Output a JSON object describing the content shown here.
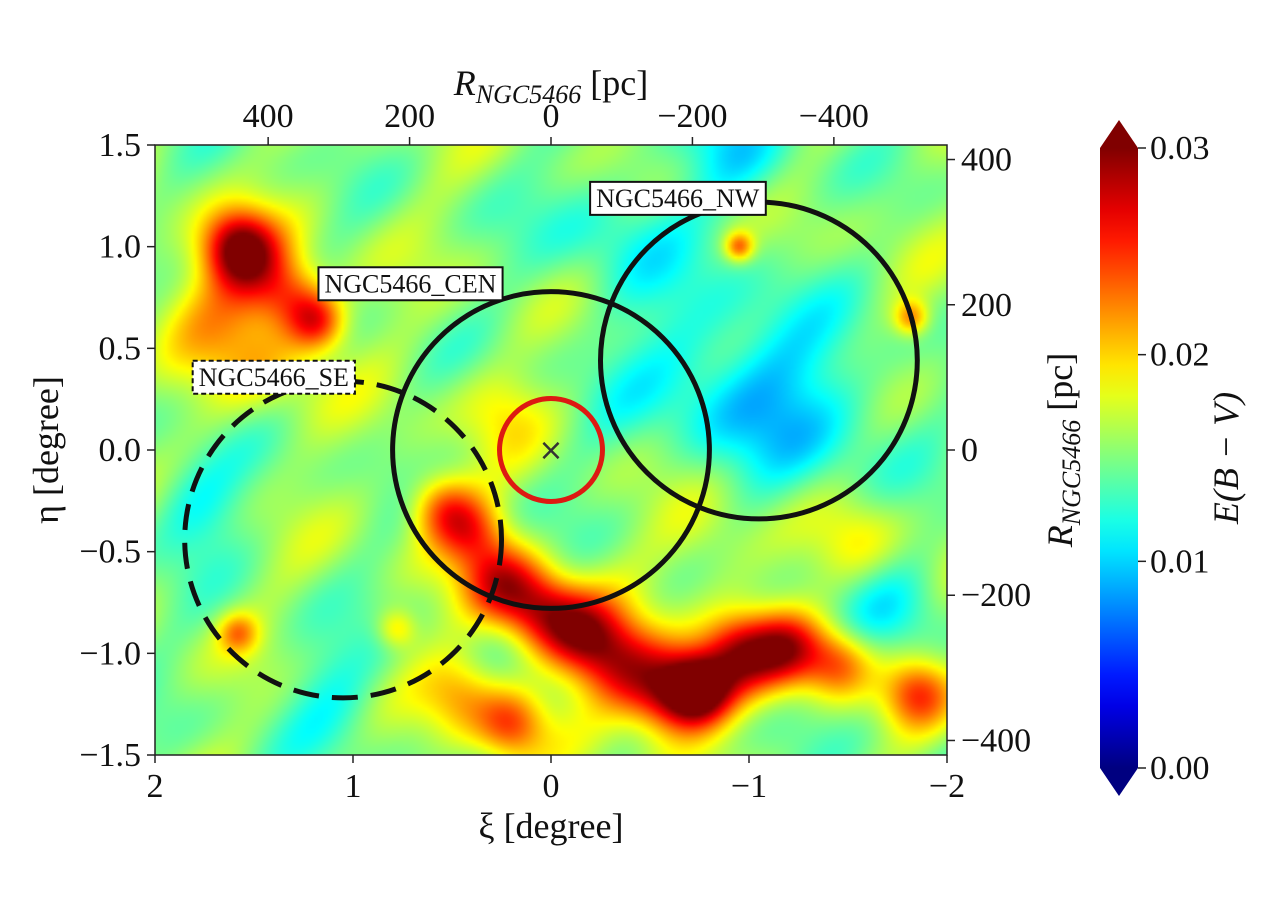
{
  "chart_data": {
    "type": "heatmap",
    "title": "",
    "xlabel": "ξ [degree]",
    "ylabel": "η [degree]",
    "top_xlabel_main": "R",
    "top_xlabel_sub": "NGC5466",
    "top_xlabel_unit": " [pc]",
    "right_ylabel_main": "R",
    "right_ylabel_sub": "NGC5466",
    "right_ylabel_unit": " [pc]",
    "xlim": [
      2,
      -2
    ],
    "ylim": [
      -1.5,
      1.5
    ],
    "x_ticks": [
      2,
      1,
      0,
      -1,
      -2
    ],
    "x_tick_labels": [
      "2",
      "1",
      "0",
      "−1",
      "−2"
    ],
    "y_ticks": [
      1.5,
      1.0,
      0.5,
      0.0,
      -0.5,
      -1.0,
      -1.5
    ],
    "y_tick_labels": [
      "1.5",
      "1.0",
      "0.5",
      "0.0",
      "−0.5",
      "−1.0",
      "−1.5"
    ],
    "top_ticks_pc": [
      400,
      200,
      0,
      -200,
      -400
    ],
    "top_tick_labels": [
      "400",
      "200",
      "0",
      "−200",
      "−400"
    ],
    "right_ticks_pc": [
      400,
      200,
      0,
      -200,
      -400
    ],
    "right_tick_labels": [
      "400",
      "200",
      "0",
      "−200",
      "−400"
    ],
    "pc_per_degree": 280,
    "colorbar": {
      "label": "E(B − V)",
      "min": 0.0,
      "max": 0.03,
      "ticks": [
        0.0,
        0.01,
        0.02,
        0.03
      ],
      "tick_labels": [
        "0.00",
        "0.01",
        "0.02",
        "0.03"
      ],
      "extend": "both"
    },
    "background_level": 0.0155,
    "extinction_features": [
      {
        "xi": 1.58,
        "eta": 1.0,
        "amp": 0.013,
        "sigma": 0.13
      },
      {
        "xi": 1.45,
        "eta": 0.85,
        "amp": 0.005,
        "sigma": 0.15
      },
      {
        "xi": 1.3,
        "eta": 0.75,
        "amp": 0.006,
        "sigma": 0.12
      },
      {
        "xi": 1.18,
        "eta": 0.63,
        "amp": 0.009,
        "sigma": 0.1
      },
      {
        "xi": 1.75,
        "eta": 0.7,
        "amp": 0.004,
        "sigma": 0.2
      },
      {
        "xi": 1.45,
        "eta": 0.45,
        "amp": 0.004,
        "sigma": 0.2
      },
      {
        "xi": 0.55,
        "eta": -0.28,
        "amp": 0.008,
        "sigma": 0.12
      },
      {
        "xi": 0.4,
        "eta": -0.4,
        "amp": 0.007,
        "sigma": 0.12
      },
      {
        "xi": 0.25,
        "eta": -0.65,
        "amp": 0.01,
        "sigma": 0.14
      },
      {
        "xi": 0.05,
        "eta": -0.8,
        "amp": 0.01,
        "sigma": 0.14
      },
      {
        "xi": -0.15,
        "eta": -0.9,
        "amp": 0.009,
        "sigma": 0.14
      },
      {
        "xi": -0.35,
        "eta": -1.05,
        "amp": 0.01,
        "sigma": 0.16
      },
      {
        "xi": -0.6,
        "eta": -1.2,
        "amp": 0.012,
        "sigma": 0.15
      },
      {
        "xi": -0.75,
        "eta": -1.18,
        "amp": 0.014,
        "sigma": 0.12
      },
      {
        "xi": -0.95,
        "eta": -1.0,
        "amp": 0.011,
        "sigma": 0.14
      },
      {
        "xi": -1.2,
        "eta": -0.98,
        "amp": 0.01,
        "sigma": 0.13
      },
      {
        "xi": -1.45,
        "eta": -1.05,
        "amp": 0.008,
        "sigma": 0.12
      },
      {
        "xi": -1.85,
        "eta": -1.2,
        "amp": 0.008,
        "sigma": 0.12
      },
      {
        "xi": 0.2,
        "eta": -1.35,
        "amp": 0.008,
        "sigma": 0.12
      },
      {
        "xi": 0.45,
        "eta": -1.2,
        "amp": 0.006,
        "sigma": 0.14
      },
      {
        "xi": -0.95,
        "eta": 1.0,
        "amp": 0.008,
        "sigma": 0.05
      },
      {
        "xi": -1.82,
        "eta": 0.65,
        "amp": 0.007,
        "sigma": 0.06
      },
      {
        "xi": 1.58,
        "eta": -0.9,
        "amp": 0.006,
        "sigma": 0.07
      },
      {
        "xi": 0.78,
        "eta": -0.88,
        "amp": 0.005,
        "sigma": 0.07
      },
      {
        "xi": 0.25,
        "eta": 0.2,
        "amp": 0.003,
        "sigma": 0.15
      },
      {
        "xi": -1.55,
        "eta": -0.45,
        "amp": 0.003,
        "sigma": 0.15
      },
      {
        "xi": -0.8,
        "eta": -0.45,
        "amp": 0.003,
        "sigma": 0.18
      },
      {
        "xi": -0.8,
        "eta": 0.4,
        "amp": -0.004,
        "sigma": 0.35
      },
      {
        "xi": -1.3,
        "eta": 0.2,
        "amp": -0.004,
        "sigma": 0.3
      },
      {
        "xi": -0.95,
        "eta": 1.45,
        "amp": -0.004,
        "sigma": 0.2
      },
      {
        "xi": -0.3,
        "eta": 1.1,
        "amp": -0.003,
        "sigma": 0.25
      },
      {
        "xi": 1.8,
        "eta": -0.25,
        "amp": -0.004,
        "sigma": 0.18
      },
      {
        "xi": 1.1,
        "eta": -1.2,
        "amp": -0.003,
        "sigma": 0.2
      },
      {
        "xi": -1.75,
        "eta": -0.8,
        "amp": -0.003,
        "sigma": 0.18
      }
    ],
    "regions": [
      {
        "name": "NGC5466_CEN",
        "xi": 0.0,
        "eta": 0.0,
        "radius": 0.8,
        "style": "solid",
        "color": "#111111",
        "label_at": [
          0.71,
          0.82
        ]
      },
      {
        "name": "NGC5466_NW",
        "xi": -1.05,
        "eta": 0.44,
        "radius": 0.8,
        "style": "solid",
        "color": "#111111",
        "label_at": [
          -0.64,
          1.24
        ]
      },
      {
        "name": "NGC5466_SE",
        "xi": 1.05,
        "eta": -0.44,
        "radius": 0.8,
        "style": "dashed",
        "color": "#111111",
        "label_at": [
          1.4,
          0.36
        ]
      }
    ],
    "center_circle": {
      "xi": 0.0,
      "eta": 0.0,
      "radius": 0.26,
      "color": "#dd1a12"
    },
    "center_marker": {
      "xi": 0.0,
      "eta": 0.0,
      "symbol": "×"
    }
  }
}
